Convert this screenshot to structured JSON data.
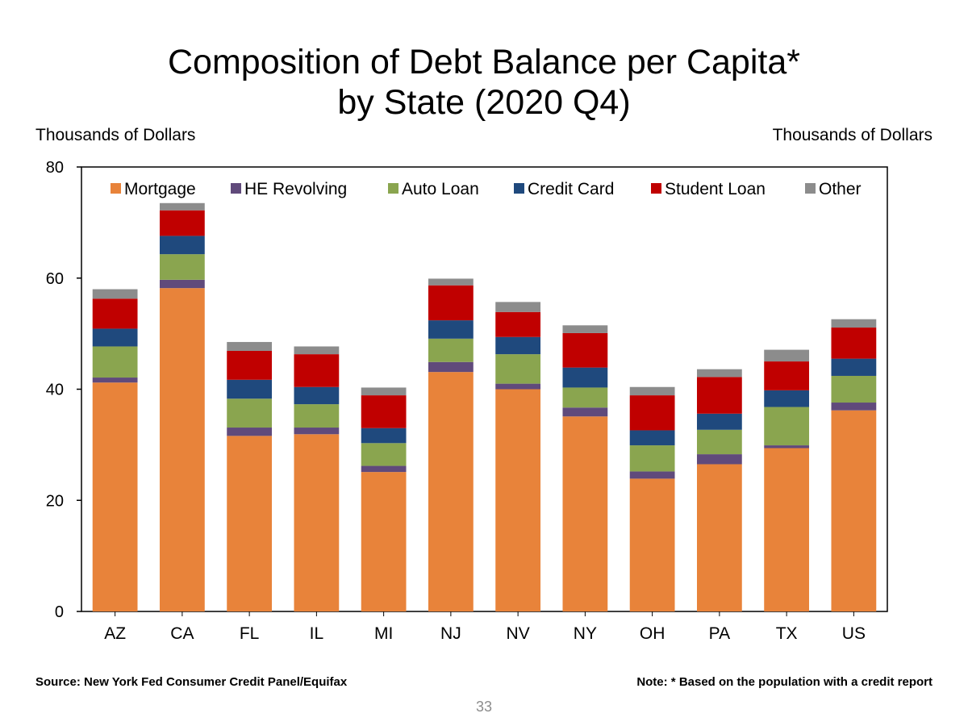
{
  "page": {
    "title_line1": "Composition of Debt Balance per Capita*",
    "title_line2": "by State (2020 Q4)",
    "source": "Source: New York Fed Consumer Credit Panel/Equifax",
    "note": "Note: * Based on the population with a credit report",
    "page_number": "33"
  },
  "chart_data": {
    "type": "bar",
    "stacked": true,
    "title": "Composition of Debt Balance per Capita* by State (2020 Q4)",
    "ylabel_left": "Thousands of Dollars",
    "ylabel_right": "Thousands of Dollars",
    "ylim": [
      0,
      80
    ],
    "yticks": [
      0,
      20,
      40,
      60,
      80
    ],
    "legend_position": "top",
    "categories": [
      "AZ",
      "CA",
      "FL",
      "IL",
      "MI",
      "NJ",
      "NV",
      "NY",
      "OH",
      "PA",
      "TX",
      "US"
    ],
    "series": [
      {
        "name": "Mortgage",
        "color": "#E8833A",
        "values": [
          41.2,
          58.2,
          31.6,
          31.9,
          25.1,
          43.1,
          40.0,
          35.1,
          23.9,
          26.5,
          29.4,
          36.2
        ]
      },
      {
        "name": "HE Revolving",
        "color": "#604A7B",
        "values": [
          0.9,
          1.5,
          1.5,
          1.2,
          1.1,
          1.8,
          1.0,
          1.6,
          1.3,
          1.8,
          0.5,
          1.4
        ]
      },
      {
        "name": "Auto Loan",
        "color": "#8AA54F",
        "values": [
          5.6,
          4.6,
          5.2,
          4.2,
          4.1,
          4.2,
          5.3,
          3.6,
          4.7,
          4.4,
          6.9,
          4.8
        ]
      },
      {
        "name": "Credit Card",
        "color": "#1F497D",
        "values": [
          3.2,
          3.3,
          3.4,
          3.1,
          2.7,
          3.3,
          3.1,
          3.6,
          2.7,
          2.9,
          3.0,
          3.1
        ]
      },
      {
        "name": "Student Loan",
        "color": "#C00000",
        "values": [
          5.4,
          4.6,
          5.2,
          5.9,
          5.9,
          6.3,
          4.5,
          6.2,
          6.3,
          6.6,
          5.2,
          5.6
        ]
      },
      {
        "name": "Other",
        "color": "#8C8C8C",
        "values": [
          1.7,
          1.3,
          1.6,
          1.4,
          1.4,
          1.2,
          1.8,
          1.4,
          1.5,
          1.4,
          2.1,
          1.5
        ]
      }
    ]
  }
}
